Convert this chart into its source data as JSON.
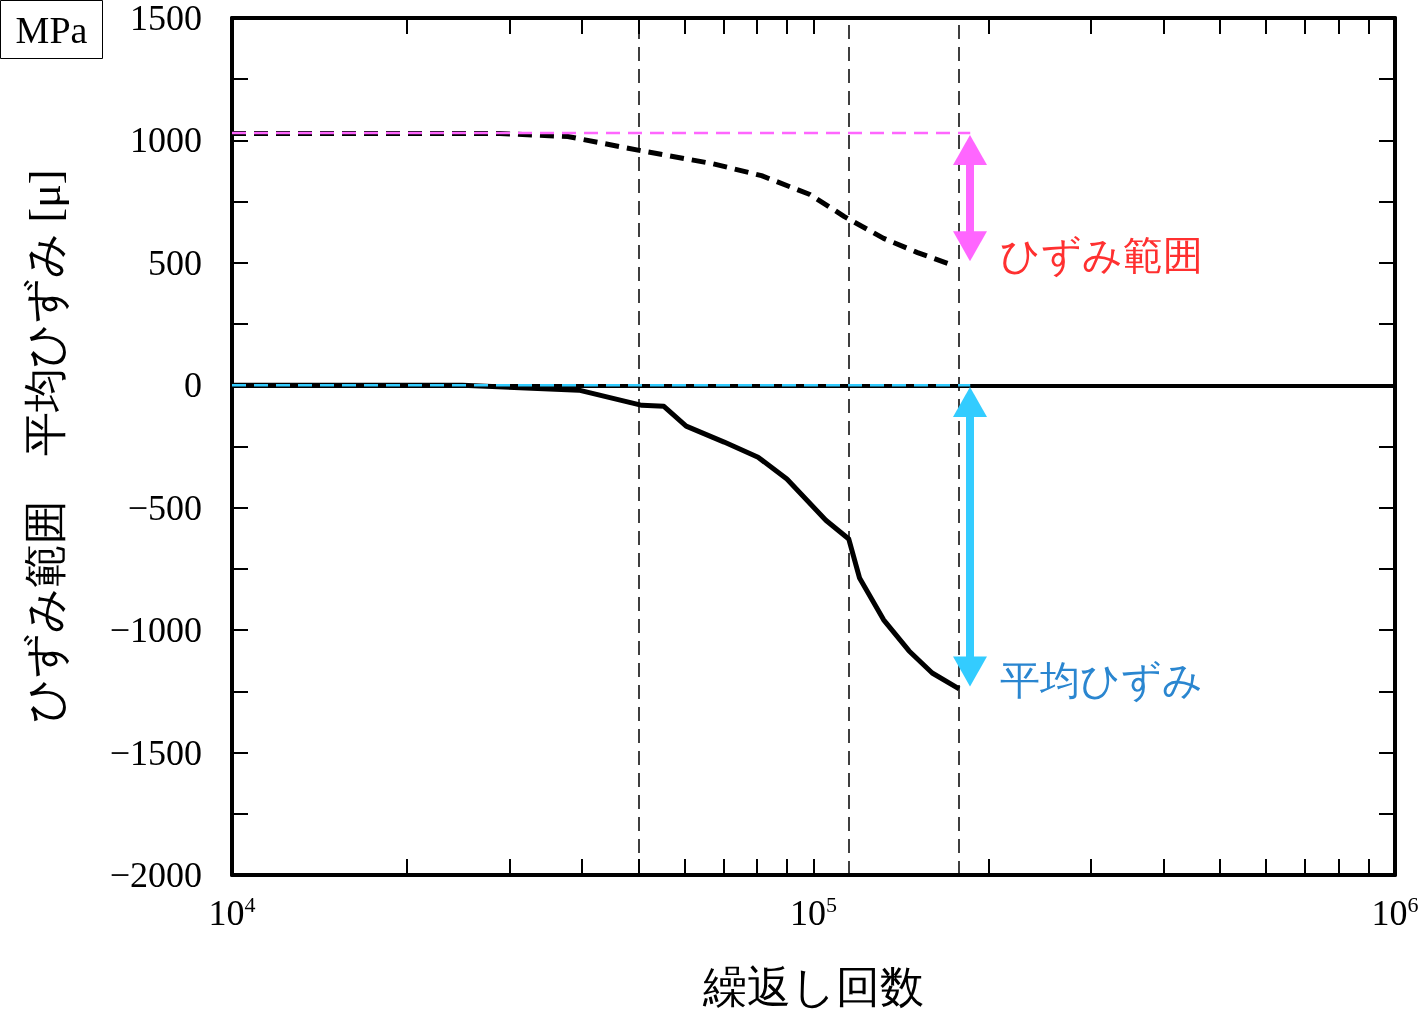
{
  "chart_data": {
    "type": "line",
    "xlabel": "繰返し回数",
    "ylabel": "ひずみ範囲　平均ひずみ [μ]",
    "log": "x",
    "xlim": [
      10000,
      1000000
    ],
    "xticks": [
      {
        "value": 10000,
        "label": "10$^{4}$"
      },
      {
        "value": 20000,
        "label": null
      },
      {
        "value": 30000,
        "label": null
      },
      {
        "value": 40000,
        "label": null
      },
      {
        "value": 50000,
        "label": null
      },
      {
        "value": 60000,
        "label": null
      },
      {
        "value": 70000,
        "label": null
      },
      {
        "value": 80000,
        "label": null
      },
      {
        "value": 90000,
        "label": null
      },
      {
        "value": 100000,
        "label": "10$^{5}$"
      },
      {
        "value": 200000,
        "label": null
      },
      {
        "value": 300000,
        "label": null
      },
      {
        "value": 400000,
        "label": null
      },
      {
        "value": 500000,
        "label": null
      },
      {
        "value": 600000,
        "label": null
      },
      {
        "value": 700000,
        "label": null
      },
      {
        "value": 800000,
        "label": null
      },
      {
        "value": 900000,
        "label": null
      },
      {
        "value": 1000000,
        "label": "10$^{6}$"
      }
    ],
    "ylim": [
      -2000,
      1500
    ],
    "yticks": [
      {
        "value": -2000,
        "label": "−2000"
      },
      {
        "value": -1750,
        "label": null
      },
      {
        "value": -1500,
        "label": "−1500"
      },
      {
        "value": -1250,
        "label": null
      },
      {
        "value": -1000,
        "label": "−1000"
      },
      {
        "value": -750,
        "label": null
      },
      {
        "value": -500,
        "label": "−500"
      },
      {
        "value": -250,
        "label": null
      },
      0,
      {
        "value": 250,
        "label": null
      },
      500,
      {
        "value": 750,
        "label": null
      },
      1000,
      {
        "value": 1250,
        "label": null
      },
      1500
    ],
    "grid": false,
    "series": [
      {
        "color": "#000000",
        "line_style": "dashed",
        "x": [
          10000,
          28900,
          37800,
          50500,
          67100,
          81400,
          98600,
          113000,
          132000,
          151000,
          170000
        ],
        "values": [
          1028,
          1028,
          1016,
          958,
          905,
          856,
          779,
          689,
          600,
          542,
          498
        ]
      },
      {
        "color": "#000000",
        "line_style": "solid",
        "x": [
          10000,
          24900,
          39500,
          50700,
          55300,
          60400,
          70200,
          80300,
          90000,
          105000,
          115000,
          120000,
          132000,
          146000,
          160000,
          178000
        ],
        "values": [
          0,
          0,
          -20,
          -82,
          -86,
          -167,
          -232,
          -294,
          -383,
          -551,
          -628,
          -787,
          -958,
          -1085,
          -1175,
          -1240
        ]
      },
      {
        "color": "#ff66ff",
        "line_style": "dashed",
        "x": [
          10000,
          186000
        ],
        "values": [
          1030,
          1030
        ]
      },
      {
        "color": "#33ccff",
        "line_style": "dashed",
        "x": [
          10000,
          186000
        ],
        "values": [
          0,
          0
        ]
      }
    ],
    "ref_lines": [
      {
        "axis": "y",
        "value": 0,
        "color": "#000000",
        "line_style": "solid"
      },
      {
        "axis": "x",
        "value": 50000,
        "color": "#000000",
        "line_style": "dashed"
      },
      {
        "axis": "x",
        "value": 115000,
        "color": "#000000",
        "line_style": "dashed"
      },
      {
        "axis": "x",
        "value": 178000,
        "color": "#000000",
        "line_style": "dashed"
      }
    ],
    "annotations": [
      "ひずみ範囲",
      "平均ひずみ",
      "MPa"
    ]
  }
}
